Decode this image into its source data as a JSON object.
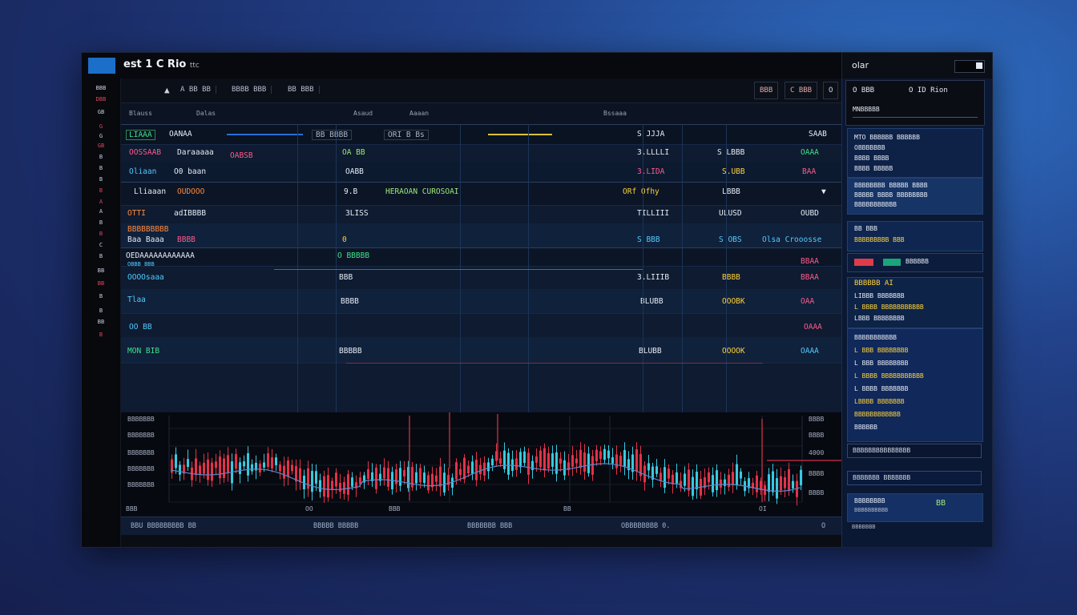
{
  "window": {
    "app_title": "est 1 C Rio",
    "app_title_sub": "ttc",
    "logo": "",
    "right_title": "olar"
  },
  "sidebar": {
    "items": [
      "BBB",
      "DBB",
      "GB",
      "G",
      "G",
      "GB",
      "B",
      "B",
      "B",
      "B",
      "A",
      "A",
      "B",
      "B",
      "C",
      "B",
      "BB",
      "BB",
      "B",
      "B",
      "BB",
      "B"
    ]
  },
  "toolbar": {
    "items": [
      "A BB BB",
      "BBBB BBB",
      "BB BBB"
    ],
    "right_buttons": [
      "BBB",
      "C BBB",
      "O"
    ]
  },
  "columns": [
    "Blauss",
    "Dalas",
    "Asaud",
    "Aaaan",
    "Bssaaa"
  ],
  "rows": [
    {
      "a": "LIAAA",
      "b": "OANAA",
      "c": "BB BBBB",
      "d": "ORI B Bs",
      "e": "S JJJA",
      "f": "SAAB"
    },
    {
      "a": "OOSSAAB",
      "b": "Daraaaaa",
      "c": "OABSB",
      "d": "OA BB",
      "e": "3.LLLLI",
      "f": "S LBBB",
      "g": "OAAA"
    },
    {
      "a": "Oliaan",
      "b": "O0 baan",
      "c": "OABB",
      "d": "3.LIDA",
      "e": "S.UBB",
      "f": "BAA"
    },
    {
      "a": "Lliaaan",
      "b": "OUDOOO",
      "c": "9.B",
      "d": "HERAOAN CUROSOAI",
      "e": "ORf Ofhy",
      "f": "LBBB"
    },
    {
      "a": "OTTI",
      "b": "adIBBBB",
      "c": "3LISS",
      "d": "TILLIII",
      "e": "ULUSD",
      "f": "OUBD"
    },
    {
      "a": "Baa Baaa",
      "b": "BBBB",
      "c": "0",
      "d": "S BBB",
      "e": "S OBS",
      "f": "Olsa Crooosse"
    },
    {
      "a": "OEDAAAAAAAAAAAA",
      "b": "O BBBBB",
      "c": "",
      "d": "",
      "e": "",
      "f": "BBAA"
    },
    {
      "a": "OOOOsaaa",
      "b": "BBB",
      "c": "3.LIIIB",
      "d": "BBBB",
      "e": "BBAA",
      "f": ""
    },
    {
      "a": "Tlaa",
      "b": "BBBB",
      "c": "BLUBB",
      "d": "OOOBK",
      "e": "OAA",
      "f": ""
    },
    {
      "a": "OO BB",
      "b": "",
      "c": "",
      "d": "",
      "e": "",
      "f": "OAAA"
    },
    {
      "a": "MON BIB",
      "b": "BBBBB",
      "c": "BLUBB",
      "d": "OOOOK",
      "e": "OAAA",
      "f": ""
    }
  ],
  "chart_data": {
    "type": "candlestick",
    "title": "",
    "y_tick_labels": [
      "BBBB",
      "BBBB",
      "4000",
      "BBBB",
      "BBBB"
    ],
    "x_tick_labels": [
      "BBB",
      "OO",
      "BBB",
      "BB",
      "OI"
    ],
    "left_labels": [
      "BBBBBBB",
      "BBBBBBB",
      "BBBBBBB",
      "BBBBBBB",
      "BBBBBBB"
    ],
    "colors": {
      "up": "#37c9e0",
      "down": "#e0334a",
      "line": "#5e86c9"
    }
  },
  "status": {
    "items": [
      "BBU BBBBBBBBB BB",
      "BBBBB BBBBB",
      "BBBBBBB BBB",
      "OBBBBBBBB 0.",
      "O"
    ]
  },
  "right_panel": {
    "head": [
      "O BBB",
      "O ID Rion"
    ],
    "sub": "MNBBBBB",
    "block1": [
      "MTO BBBBBB BBBBBB",
      "OBBBBBBB",
      "BBBB BBBB",
      "BBBB BBBBB"
    ],
    "block2": [
      "BBBBBBBB BBBBB BBBB",
      "BBBBB BBBB BBBBBBBB",
      "BBBBBBBBBBB"
    ],
    "block3": [
      "BB BBB",
      "BBBBBBBBB BBB"
    ],
    "meter_label": "BBBBBB",
    "block4": [
      "BBBBBB AI",
      "LIBBB BBBBBBB",
      "L BBBB BBBBBBBBBBB",
      "LBBB BBBBBBBB"
    ],
    "block5": [
      "BBBBBBBBBBB",
      "L BBB BBBBBBBB",
      "L BBB BBBBBBBB",
      "L BBBB BBBBBBBBBBB",
      "L BBBB BBBBBBB",
      "LBBBB BBBBBBB",
      "BBBBBBBBBBBB",
      "BBBBBB"
    ],
    "input1": "BBBBBBBBBBBBBBB",
    "input2": "BBBBBBB BBBBBBB",
    "footer": [
      "BBBBBBBB",
      "BBBBBBBBBB",
      "BBBBBBB"
    ]
  }
}
